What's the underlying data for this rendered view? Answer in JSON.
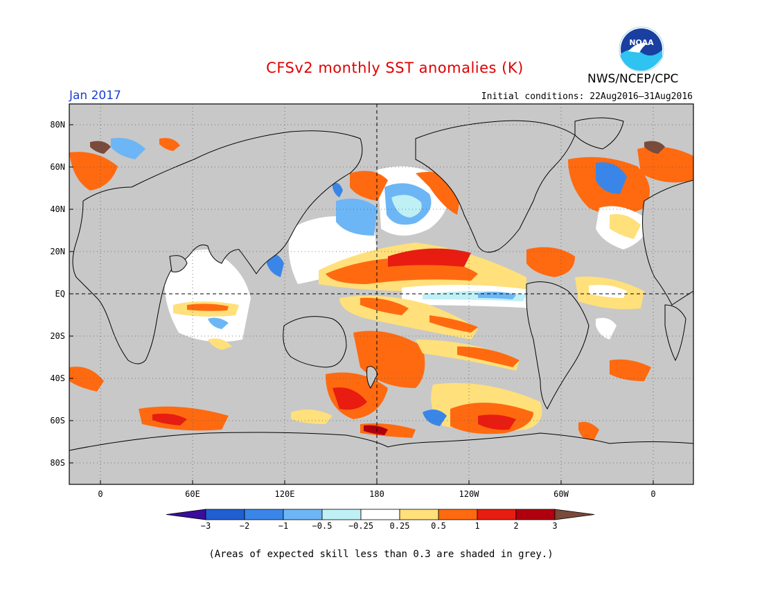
{
  "title": "CFSv2 monthly SST anomalies (K)",
  "month": "Jan 2017",
  "initial_conditions": "Initial conditions: 22Aug2016–31Aug2016",
  "agency": "NWS/NCEP/CPC",
  "logo_text": "NOAA",
  "footnote": "(Areas of expected skill less than 0.3 are shaded in grey.)",
  "y_axis_labels": [
    "80N",
    "60N",
    "40N",
    "20N",
    "EQ",
    "20S",
    "40S",
    "60S",
    "80S"
  ],
  "x_axis_labels": [
    "0",
    "60E",
    "120E",
    "180",
    "120W",
    "60W",
    "0"
  ],
  "colorbar": {
    "tick_labels": [
      "−3",
      "−2",
      "−1",
      "−0.5",
      "−0.25",
      "0.25",
      "0.5",
      "1",
      "2",
      "3"
    ],
    "colors": [
      "#3a0d9a",
      "#1f5fd0",
      "#3a86e8",
      "#6db6f5",
      "#bff0f6",
      "#ffffff",
      "#ffe07a",
      "#ff6a10",
      "#e81c10",
      "#b00010",
      "#7a4a3a"
    ]
  },
  "colors": {
    "skill_grey": "#c8c8c8",
    "title_red": "#e00000",
    "month_blue": "#1a3fd0"
  }
}
